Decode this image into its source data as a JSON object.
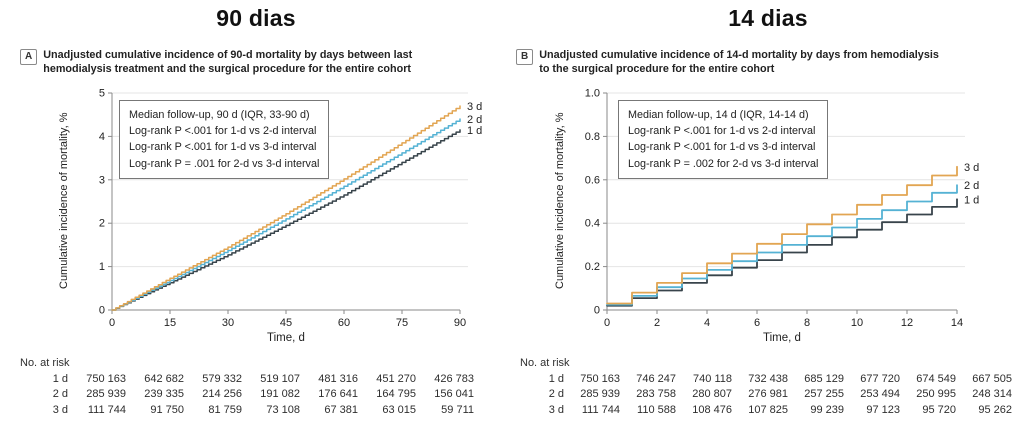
{
  "colors": {
    "grid": "#e4e4e4",
    "axis": "#8a8a8a",
    "text": "#222222",
    "series_3d": "#e2a552",
    "series_2d": "#55b2d4",
    "series_1d": "#38444b"
  },
  "panels": [
    {
      "title": "90 dias",
      "tag": "A",
      "caption": "Unadjusted cumulative incidence of 90-d mortality by days between last hemodialysis treatment and the surgical procedure for the entire cohort",
      "ylabel": "Cumulative incidence of mortality, %",
      "xlabel": "Time, d",
      "legend_lines": [
        "Median follow-up, 90 d (IQR, 33-90 d)",
        "Log-rank P <.001 for 1-d vs 2-d interval",
        "Log-rank P <.001 for 1-d vs 3-d interval",
        "Log-rank P = .001 for 2-d vs 3-d interval"
      ],
      "risk": {
        "title": "No. at risk",
        "rows": [
          {
            "cells": [
              "1 d",
              "750 163",
              "642 682",
              "579 332",
              "519 107",
              "481 316",
              "451 270",
              "426 783"
            ]
          },
          {
            "cells": [
              "2 d",
              "285 939",
              "239 335",
              "214 256",
              "191 082",
              "176 641",
              "164 795",
              "156 041"
            ]
          },
          {
            "cells": [
              "3 d",
              "111 744",
              "91 750",
              "81 759",
              "73 108",
              "67 381",
              "63 015",
              "59 711"
            ]
          }
        ]
      }
    },
    {
      "title": "14 dias",
      "tag": "B",
      "caption": "Unadjusted cumulative incidence of 14-d mortality by days from hemodialysis to the surgical procedure for the entire cohort",
      "ylabel": "Cumulative incidence of mortality, %",
      "xlabel": "Time, d",
      "legend_lines": [
        "Median follow-up, 14 d (IQR, 14-14 d)",
        "Log-rank P <.001 for 1-d vs 2-d interval",
        "Log-rank P <.001 for 1-d vs 3-d interval",
        "Log-rank P = .002 for 2-d vs 3-d interval"
      ],
      "risk": {
        "title": "No. at risk",
        "rows": [
          {
            "cells": [
              "1 d",
              "750 163",
              "746 247",
              "740 118",
              "732 438",
              "685 129",
              "677 720",
              "674 549",
              "667 505"
            ]
          },
          {
            "cells": [
              "2 d",
              "285 939",
              "283 758",
              "280 807",
              "276 981",
              "257 255",
              "253 494",
              "250 995",
              "248 314"
            ]
          },
          {
            "cells": [
              "3 d",
              "111 744",
              "110 588",
              "108 476",
              "107 825",
              "99 239",
              "97 123",
              "95 720",
              "95 262"
            ]
          }
        ]
      }
    }
  ],
  "chart_data": [
    {
      "type": "line",
      "id": "chart-a",
      "title": "90 dias",
      "xlabel": "Time, d",
      "ylabel": "Cumulative incidence of mortality, %",
      "xlim": [
        0,
        90
      ],
      "ylim": [
        0,
        5
      ],
      "xticks": [
        0,
        15,
        30,
        45,
        60,
        75,
        90
      ],
      "xtick_labels": [
        "0",
        "15",
        "30",
        "45",
        "60",
        "75",
        "90"
      ],
      "yticks": [
        0,
        1,
        2,
        3,
        4,
        5
      ],
      "ytick_labels": [
        "0",
        "1",
        "2",
        "3",
        "4",
        "5"
      ],
      "grid": true,
      "legend_position": "top-left",
      "line_width": 1.5,
      "interp_step": 1,
      "x": [
        0,
        15,
        30,
        45,
        60,
        75,
        90
      ],
      "series": [
        {
          "name": "1 d",
          "color": "#38444b",
          "values": [
            0,
            0.63,
            1.27,
            1.95,
            2.65,
            3.4,
            4.15
          ]
        },
        {
          "name": "2 d",
          "color": "#55b2d4",
          "values": [
            0,
            0.68,
            1.37,
            2.1,
            2.85,
            3.62,
            4.4
          ]
        },
        {
          "name": "3 d",
          "color": "#e2a552",
          "values": [
            0,
            0.73,
            1.45,
            2.22,
            3.02,
            3.85,
            4.7
          ]
        }
      ]
    },
    {
      "type": "step",
      "id": "chart-b",
      "title": "14 dias",
      "xlabel": "Time, d",
      "ylabel": "Cumulative incidence of mortality, %",
      "xlim": [
        0,
        14
      ],
      "ylim": [
        0,
        1.0
      ],
      "xticks": [
        0,
        2,
        4,
        6,
        8,
        10,
        12,
        14
      ],
      "xtick_labels": [
        "0",
        "2",
        "4",
        "6",
        "8",
        "10",
        "12",
        "14"
      ],
      "yticks": [
        0,
        0.2,
        0.4,
        0.6,
        0.8,
        1.0
      ],
      "ytick_labels": [
        "0",
        "0.2",
        "0.4",
        "0.6",
        "0.8",
        "1.0"
      ],
      "grid": true,
      "legend_position": "top-left",
      "line_width": 1.8,
      "x": [
        0,
        1,
        2,
        3,
        4,
        5,
        6,
        7,
        8,
        9,
        10,
        11,
        12,
        13,
        14
      ],
      "series": [
        {
          "name": "1 d",
          "color": "#38444b",
          "values": [
            0.02,
            0.055,
            0.09,
            0.125,
            0.16,
            0.195,
            0.23,
            0.265,
            0.3,
            0.335,
            0.37,
            0.405,
            0.44,
            0.475,
            0.51
          ]
        },
        {
          "name": "2 d",
          "color": "#55b2d4",
          "values": [
            0.025,
            0.065,
            0.105,
            0.145,
            0.185,
            0.225,
            0.265,
            0.3,
            0.34,
            0.38,
            0.42,
            0.46,
            0.5,
            0.54,
            0.575
          ]
        },
        {
          "name": "3 d",
          "color": "#e2a552",
          "values": [
            0.03,
            0.08,
            0.125,
            0.17,
            0.215,
            0.26,
            0.305,
            0.35,
            0.395,
            0.44,
            0.485,
            0.53,
            0.575,
            0.62,
            0.66
          ]
        }
      ]
    }
  ]
}
